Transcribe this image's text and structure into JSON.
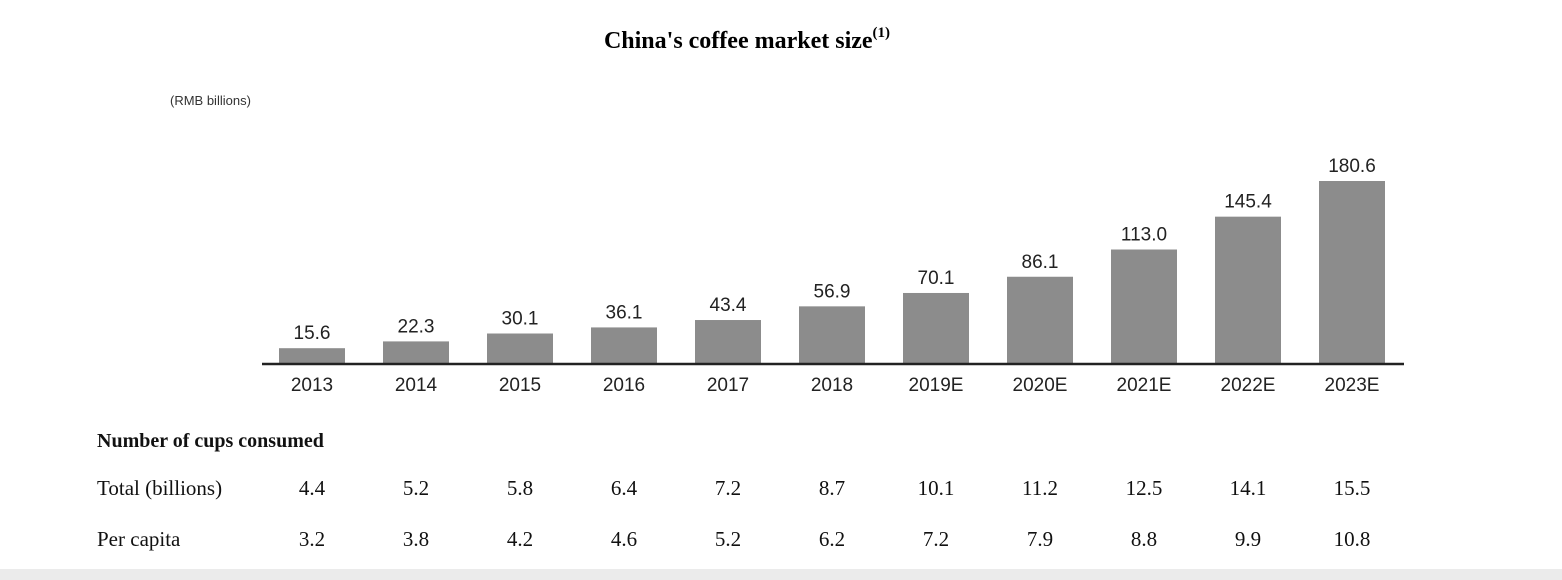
{
  "chart_data": {
    "type": "bar",
    "title": "China's coffee market size",
    "title_superscript": "(1)",
    "unit_label": "(RMB billions)",
    "categories": [
      "2013",
      "2014",
      "2015",
      "2016",
      "2017",
      "2018",
      "2019E",
      "2020E",
      "2021E",
      "2022E",
      "2023E"
    ],
    "values": [
      15.6,
      22.3,
      30.1,
      36.1,
      43.4,
      56.9,
      70.1,
      86.1,
      113.0,
      145.4,
      180.6
    ],
    "value_labels": [
      "15.6",
      "22.3",
      "30.1",
      "36.1",
      "43.4",
      "56.9",
      "70.1",
      "86.1",
      "113.0",
      "145.4",
      "180.6"
    ],
    "bar_color": "#8c8c8c",
    "ylim": [
      0,
      180.6
    ],
    "grid": false,
    "legend": "none",
    "table": {
      "header": "Number of cups consumed",
      "rows": [
        {
          "label": "Total (billions)",
          "values": [
            "4.4",
            "5.2",
            "5.8",
            "6.4",
            "7.2",
            "8.7",
            "10.1",
            "11.2",
            "12.5",
            "14.1",
            "15.5"
          ]
        },
        {
          "label": "Per capita",
          "values": [
            "3.2",
            "3.8",
            "4.2",
            "4.6",
            "5.2",
            "6.2",
            "7.2",
            "7.9",
            "8.8",
            "9.9",
            "10.8"
          ]
        }
      ]
    }
  }
}
